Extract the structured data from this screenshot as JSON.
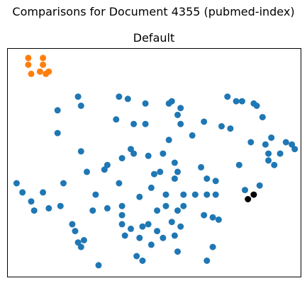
{
  "figure": {
    "suptitle": "Comparisons for Document 4355 (pubmed-index)"
  },
  "chart_data": {
    "type": "scatter",
    "title": "Default",
    "xlabel": "",
    "ylabel": "",
    "xticks": false,
    "yticks": false,
    "grid": false,
    "legend": "none",
    "xlim": [
      0,
      100
    ],
    "ylim": [
      0,
      100
    ],
    "series": [
      {
        "color": "#1f77b4",
        "points": [
          [
            3,
            41
          ],
          [
            5,
            37
          ],
          [
            8,
            33
          ],
          [
            9,
            29
          ],
          [
            12,
            37
          ],
          [
            14,
            30
          ],
          [
            18,
            31
          ],
          [
            19,
            41
          ],
          [
            22,
            23
          ],
          [
            23,
            20
          ],
          [
            24,
            15
          ],
          [
            25,
            13
          ],
          [
            26,
            16
          ],
          [
            17,
            73
          ],
          [
            17,
            63
          ],
          [
            24,
            79
          ],
          [
            25,
            75
          ],
          [
            25,
            55
          ],
          [
            27,
            46
          ],
          [
            29,
            29
          ],
          [
            30,
            36
          ],
          [
            31,
            5
          ],
          [
            33,
            47
          ],
          [
            34,
            49
          ],
          [
            34,
            30
          ],
          [
            38,
            79
          ],
          [
            37,
            69
          ],
          [
            38,
            41
          ],
          [
            39,
            31
          ],
          [
            39,
            52
          ],
          [
            39,
            27
          ],
          [
            39,
            23
          ],
          [
            40,
            18
          ],
          [
            41,
            78
          ],
          [
            42,
            56
          ],
          [
            42,
            21
          ],
          [
            43,
            54
          ],
          [
            43,
            67
          ],
          [
            44,
            9
          ],
          [
            45,
            17
          ],
          [
            45,
            35
          ],
          [
            46,
            7
          ],
          [
            46,
            22
          ],
          [
            47,
            76
          ],
          [
            47,
            67
          ],
          [
            48,
            53
          ],
          [
            48,
            23
          ],
          [
            49,
            39
          ],
          [
            49,
            14
          ],
          [
            50,
            45
          ],
          [
            51,
            20
          ],
          [
            51,
            29
          ],
          [
            52,
            46
          ],
          [
            53,
            54
          ],
          [
            53,
            17
          ],
          [
            54,
            36
          ],
          [
            54,
            31
          ],
          [
            55,
            60
          ],
          [
            55,
            76
          ],
          [
            56,
            77
          ],
          [
            56,
            24
          ],
          [
            57,
            43
          ],
          [
            57,
            50
          ],
          [
            57,
            18
          ],
          [
            58,
            29
          ],
          [
            58,
            11
          ],
          [
            58,
            71
          ],
          [
            58,
            46
          ],
          [
            59,
            74
          ],
          [
            59,
            67
          ],
          [
            59,
            22
          ],
          [
            60,
            31
          ],
          [
            60,
            36
          ],
          [
            63,
            62
          ],
          [
            64,
            36
          ],
          [
            66,
            48
          ],
          [
            67,
            68
          ],
          [
            67,
            27
          ],
          [
            68,
            36
          ],
          [
            68,
            43
          ],
          [
            68,
            7
          ],
          [
            70,
            13
          ],
          [
            70,
            26
          ],
          [
            71,
            42
          ],
          [
            71,
            36
          ],
          [
            72,
            25
          ],
          [
            73,
            66
          ],
          [
            75,
            79
          ],
          [
            76,
            65
          ],
          [
            78,
            77
          ],
          [
            79,
            49
          ],
          [
            80,
            77
          ],
          [
            81,
            38
          ],
          [
            83,
            59
          ],
          [
            84,
            76
          ],
          [
            85,
            75
          ],
          [
            86,
            40
          ],
          [
            87,
            70
          ],
          [
            88,
            58
          ],
          [
            89,
            54
          ],
          [
            89,
            51
          ],
          [
            90,
            61
          ],
          [
            91,
            49
          ],
          [
            93,
            54
          ],
          [
            95,
            59
          ],
          [
            97,
            58
          ],
          [
            98,
            56
          ]
        ]
      },
      {
        "color": "#ff7f0e",
        "points": [
          [
            7,
            96
          ],
          [
            7,
            93
          ],
          [
            8,
            89
          ],
          [
            11,
            90
          ],
          [
            12,
            96
          ],
          [
            12,
            93
          ],
          [
            13,
            89
          ],
          [
            14,
            90
          ]
        ]
      },
      {
        "color": "#000000",
        "points": [
          [
            82,
            34
          ],
          [
            84,
            36
          ]
        ]
      }
    ]
  }
}
